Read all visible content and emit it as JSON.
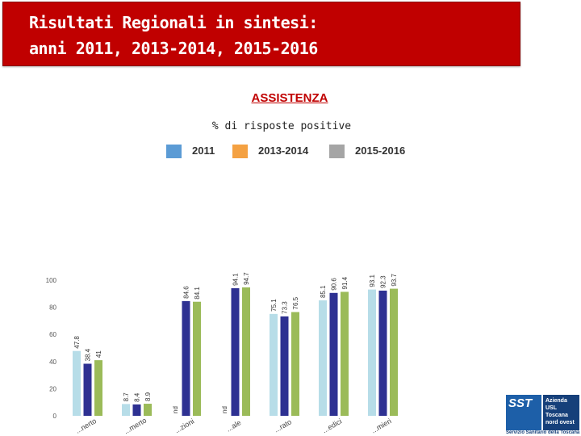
{
  "header": {
    "title_line1": "Risultati Regionali in sintesi:",
    "title_line2": "anni 2011, 2013-2014, 2015-2016"
  },
  "section": {
    "title": "ASSISTENZA",
    "subtitle": "% di risposte positive"
  },
  "legend": {
    "items": [
      {
        "label": "2011",
        "color": "#5b9bd5"
      },
      {
        "label": "2013-2014",
        "color": "#f4a142"
      },
      {
        "label": "2015-2016",
        "color": "#a5a5a5"
      }
    ]
  },
  "chart_data": {
    "type": "bar",
    "categories": [
      "...nerto",
      "...merto",
      "...zioni",
      "...ale",
      "...rato",
      "...edici",
      "...mieri"
    ],
    "series": [
      {
        "values": [
          47.8,
          8.7,
          null,
          null,
          75.1,
          85.1,
          93.1
        ],
        "color": "#b7dde8"
      },
      {
        "values": [
          38.4,
          8.4,
          84.6,
          94.1,
          73.3,
          90.6,
          92.3
        ],
        "color": "#2e3192"
      },
      {
        "values": [
          41,
          8.9,
          84.1,
          94.7,
          76.5,
          91.4,
          93.7
        ],
        "color": "#9bbb59"
      }
    ],
    "value_labels": [
      [
        "47.8",
        "8.7",
        "nd",
        "nd",
        "75.1",
        "85.1",
        "93.1"
      ],
      [
        "38.4",
        "8.4",
        "84.6",
        "94.1",
        "73.3",
        "90.6",
        "92.3"
      ],
      [
        "41",
        "8.9",
        "84.1",
        "94.7",
        "76.5",
        "91.4",
        "93.7"
      ]
    ],
    "yticks": [
      0,
      20,
      40,
      60,
      80,
      100
    ],
    "ylim": [
      0,
      100
    ],
    "grid": false
  },
  "logo": {
    "mark": "SST",
    "name": "Azienda\nUSL\nToscana\nnord ovest",
    "footer": "Servizio Sanitario della Toscana",
    "color": "#1d5fa8"
  }
}
